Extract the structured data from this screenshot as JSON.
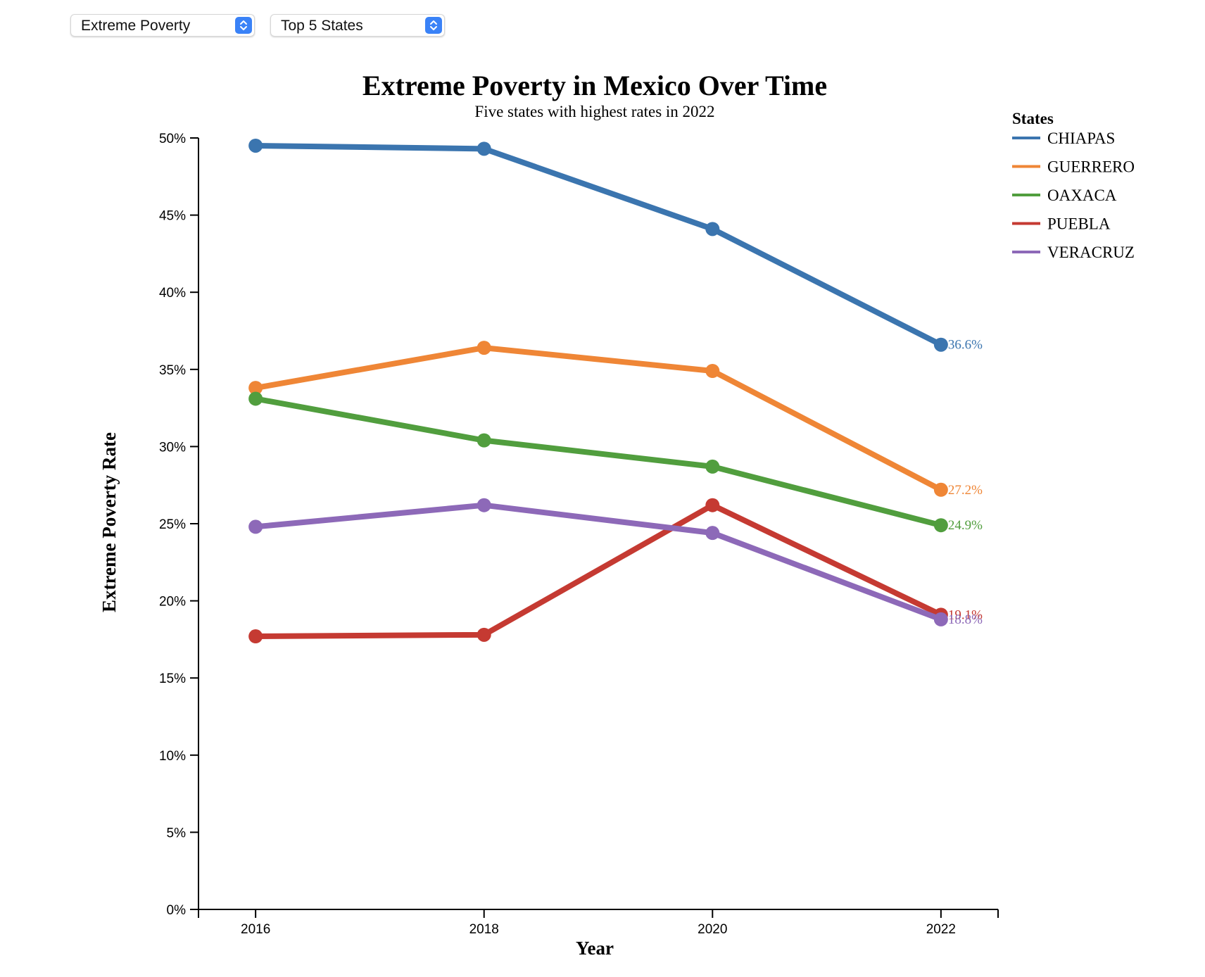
{
  "controls": {
    "metric_select": {
      "value": "Extreme Poverty",
      "icon": "chevron-updown-icon"
    },
    "filter_select": {
      "value": "Top 5 States",
      "icon": "chevron-updown-icon"
    }
  },
  "chart_data": {
    "type": "line",
    "title": "Extreme Poverty in Mexico Over Time",
    "subtitle": "Five states with highest rates in 2022",
    "xlabel": "Year",
    "ylabel": "Extreme Poverty Rate",
    "x": [
      2016,
      2018,
      2020,
      2022
    ],
    "x_tick_labels": [
      "2016",
      "2018",
      "2020",
      "2022"
    ],
    "ylim": [
      0,
      50
    ],
    "y_ticks": [
      0,
      5,
      10,
      15,
      20,
      25,
      30,
      35,
      40,
      45,
      50
    ],
    "y_tick_labels": [
      "0%",
      "5%",
      "10%",
      "15%",
      "20%",
      "25%",
      "30%",
      "35%",
      "40%",
      "45%",
      "50%"
    ],
    "grid": false,
    "legend": {
      "title": "States",
      "placement": "right"
    },
    "series": [
      {
        "name": "CHIAPAS",
        "color": "#3b75af",
        "values": [
          49.5,
          49.3,
          44.1,
          36.6
        ],
        "end_label": "36.6%"
      },
      {
        "name": "GUERRERO",
        "color": "#ef8636",
        "values": [
          33.8,
          36.4,
          34.9,
          27.2
        ],
        "end_label": "27.2%"
      },
      {
        "name": "OAXACA",
        "color": "#519e3e",
        "values": [
          33.1,
          30.4,
          28.7,
          24.9
        ],
        "end_label": "24.9%"
      },
      {
        "name": "PUEBLA",
        "color": "#c53a32",
        "values": [
          17.7,
          17.8,
          26.2,
          19.1
        ],
        "end_label": "19.1%"
      },
      {
        "name": "VERACRUZ",
        "color": "#8d69b8",
        "values": [
          24.8,
          26.2,
          24.4,
          18.8
        ],
        "end_label": "18.8%"
      }
    ]
  }
}
